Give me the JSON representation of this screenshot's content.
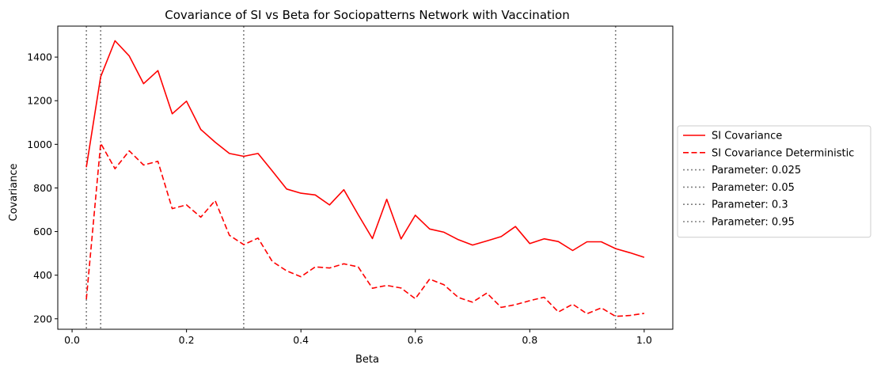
{
  "chart_data": {
    "type": "line",
    "title": "Covariance of SI vs Beta for Sociopatterns Network with Vaccination",
    "xlabel": "Beta",
    "ylabel": "Covariance",
    "xlim": [
      -0.025,
      1.05
    ],
    "ylim": [
      152,
      1542
    ],
    "xticks": [
      0.0,
      0.2,
      0.4,
      0.6,
      0.8,
      1.0
    ],
    "xtick_labels": [
      "0.0",
      "0.2",
      "0.4",
      "0.6",
      "0.8",
      "1.0"
    ],
    "yticks": [
      200,
      400,
      600,
      800,
      1000,
      1200,
      1400
    ],
    "ytick_labels": [
      "200",
      "400",
      "600",
      "800",
      "1000",
      "1200",
      "1400"
    ],
    "grid": false,
    "legend_position": "outside-right",
    "x": [
      0.025,
      0.05,
      0.075,
      0.1,
      0.125,
      0.15,
      0.175,
      0.2,
      0.225,
      0.25,
      0.275,
      0.3,
      0.325,
      0.35,
      0.375,
      0.4,
      0.425,
      0.45,
      0.475,
      0.5,
      0.525,
      0.55,
      0.575,
      0.6,
      0.625,
      0.65,
      0.675,
      0.7,
      0.725,
      0.75,
      0.775,
      0.8,
      0.825,
      0.85,
      0.875,
      0.9,
      0.925,
      0.95,
      0.975,
      1.0
    ],
    "series": [
      {
        "name": "SI Covariance",
        "color": "#ff0000",
        "style": "solid",
        "values": [
          895,
          1310,
          1475,
          1405,
          1278,
          1338,
          1140,
          1198,
          1068,
          1010,
          958,
          945,
          958,
          878,
          795,
          776,
          768,
          722,
          792,
          678,
          568,
          748,
          566,
          675,
          612,
          597,
          563,
          538,
          557,
          577,
          623,
          545,
          567,
          554,
          513,
          553,
          553,
          522,
          503,
          482
        ]
      },
      {
        "name": "SI Covariance Deterministic",
        "color": "#ff0000",
        "style": "dashed",
        "values": [
          290,
          1005,
          888,
          970,
          905,
          922,
          705,
          722,
          666,
          742,
          583,
          540,
          570,
          463,
          420,
          393,
          438,
          433,
          452,
          438,
          340,
          353,
          341,
          292,
          382,
          356,
          298,
          276,
          318,
          252,
          265,
          283,
          299,
          231,
          267,
          223,
          250,
          211,
          215,
          225
        ]
      }
    ],
    "vlines": [
      {
        "name": "Parameter: 0.025",
        "x": 0.025,
        "color": "#808080",
        "style": "dotted"
      },
      {
        "name": "Parameter: 0.05",
        "x": 0.05,
        "color": "#808080",
        "style": "dotted"
      },
      {
        "name": "Parameter: 0.3",
        "x": 0.3,
        "color": "#808080",
        "style": "dotted"
      },
      {
        "name": "Parameter: 0.95",
        "x": 0.95,
        "color": "#808080",
        "style": "dotted"
      }
    ]
  }
}
